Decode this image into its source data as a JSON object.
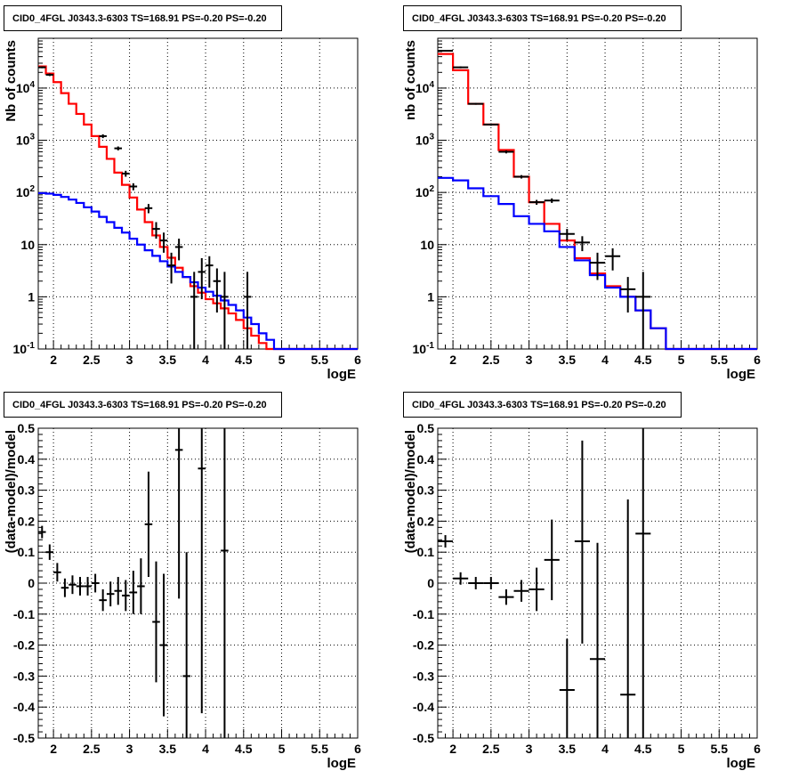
{
  "chart_data": [
    {
      "type": "histogram",
      "title": "CID0_4FGL J0343.3-6303 TS=168.91 PS=-0.20 PS=-0.20",
      "xlabel": "logE",
      "ylabel": "Nb of counts",
      "log_y": true,
      "xlim": [
        1.8,
        6.0
      ],
      "ylim": [
        0.1,
        90000
      ],
      "grid": true,
      "x_ticks": [
        "2",
        "2.5",
        "3",
        "3.5",
        "4",
        "4.5",
        "5",
        "5.5",
        "6"
      ],
      "y_ticks": [
        "10^-1",
        "1",
        "10",
        "10^2",
        "10^3",
        "10^4"
      ],
      "bin_edges": [
        1.8,
        1.9,
        2.0,
        2.1,
        2.2,
        2.3,
        2.4,
        2.5,
        2.6,
        2.7,
        2.8,
        2.9,
        3.0,
        3.1,
        3.2,
        3.3,
        3.4,
        3.5,
        3.6,
        3.7,
        3.8,
        3.9,
        4.0,
        4.1,
        4.2,
        4.3,
        4.4,
        4.5,
        4.6,
        4.7,
        4.8,
        4.9,
        5.0,
        5.1,
        5.2,
        5.3,
        5.4,
        5.5,
        5.6,
        5.7,
        5.8,
        5.9,
        6.0
      ],
      "series": [
        {
          "color": "#ff0000",
          "values": [
            26000,
            19000,
            13000,
            8000,
            5000,
            3200,
            2000,
            1200,
            750,
            440,
            240,
            140,
            80,
            47,
            27,
            15,
            9,
            5.6,
            3.6,
            2.4,
            1.6,
            1.2,
            0.9,
            0.75,
            0.6,
            0.48,
            0.36,
            0.25,
            0.18,
            0.13,
            0.1,
            0.1,
            0.1,
            0.1,
            0.1,
            0.1,
            0.1,
            0.1,
            0.1,
            0.1,
            0.1,
            0.1
          ]
        },
        {
          "color": "#0000ff",
          "values": [
            97,
            95,
            90,
            82,
            73,
            63,
            52,
            43,
            34,
            27,
            21,
            17,
            13,
            10,
            7.8,
            6.1,
            4.8,
            3.8,
            3.0,
            2.4,
            1.9,
            1.5,
            1.25,
            1.05,
            0.85,
            0.7,
            0.55,
            0.4,
            0.3,
            0.2,
            0.15,
            0.1,
            0.1,
            0.1,
            0.1,
            0.1,
            0.1,
            0.1,
            0.1,
            0.1,
            0.1,
            0.1
          ]
        }
      ],
      "points": {
        "x": [
          1.85,
          1.95,
          2.65,
          2.85,
          2.95,
          3.05,
          3.25,
          3.35,
          3.45,
          3.55,
          3.65,
          3.85,
          3.95,
          4.05,
          4.15,
          4.25,
          4.55
        ],
        "y": [
          25000,
          18000,
          1200,
          700,
          230,
          130,
          50,
          20,
          12,
          4,
          9,
          1,
          3,
          4,
          2,
          1,
          1
        ],
        "ylo": [
          24000,
          17000,
          1100,
          640,
          200,
          110,
          40,
          13,
          7,
          1.8,
          5,
          0.1,
          0.9,
          1.5,
          0.5,
          0.1,
          0.1
        ],
        "yhi": [
          26000,
          19000,
          1300,
          760,
          260,
          150,
          60,
          27,
          17,
          7,
          13,
          3,
          5.5,
          6,
          3.5,
          3,
          3
        ]
      }
    },
    {
      "type": "histogram",
      "title": "CID0_4FGL J0343.3-6303 TS=168.91 PS=-0.20 PS=-0.20",
      "xlabel": "logE",
      "ylabel": "nb of counts",
      "log_y": true,
      "xlim": [
        1.8,
        6.0
      ],
      "ylim": [
        0.1,
        90000
      ],
      "grid": true,
      "x_ticks": [
        "2",
        "2.5",
        "3",
        "3.5",
        "4",
        "4.5",
        "5",
        "5.5",
        "6"
      ],
      "y_ticks": [
        "10^-1",
        "1",
        "10",
        "10^2",
        "10^3",
        "10^4"
      ],
      "bin_edges": [
        1.8,
        2.0,
        2.2,
        2.4,
        2.6,
        2.8,
        3.0,
        3.2,
        3.4,
        3.6,
        3.8,
        4.0,
        4.2,
        4.4,
        4.6,
        4.8,
        5.0,
        5.2,
        5.4,
        5.6,
        5.8,
        6.0
      ],
      "series": [
        {
          "color": "#ff0000",
          "values": [
            45000,
            22000,
            5000,
            2000,
            650,
            200,
            65,
            25,
            12,
            5.5,
            2.8,
            1.6,
            1.0,
            0.55,
            0.25,
            0.1,
            0.1,
            0.1,
            0.1,
            0.1,
            0.1
          ]
        },
        {
          "color": "#0000ff",
          "values": [
            190,
            170,
            120,
            85,
            60,
            35,
            25,
            18,
            9,
            5,
            2.6,
            1.5,
            1.0,
            0.55,
            0.25,
            0.1,
            0.1,
            0.1,
            0.1,
            0.1,
            0.1
          ]
        }
      ],
      "points": {
        "x": [
          1.9,
          2.1,
          2.3,
          2.5,
          2.7,
          2.9,
          3.1,
          3.3,
          3.5,
          3.7,
          3.9,
          4.1,
          4.3,
          4.5
        ],
        "y": [
          52000,
          25000,
          5000,
          2000,
          600,
          200,
          65,
          70,
          16,
          11,
          4.5,
          6,
          1.4,
          1
        ],
        "ylo": [
          50000,
          24000,
          4800,
          1900,
          560,
          185,
          58,
          63,
          12,
          7.5,
          2.1,
          3.2,
          0.5,
          0.1
        ],
        "yhi": [
          54000,
          26000,
          5200,
          2100,
          640,
          215,
          72,
          77,
          20,
          14.5,
          7,
          8.5,
          2.4,
          3
        ]
      }
    },
    {
      "type": "scatter",
      "title": "CID0_4FGL J0343.3-6303 TS=168.91 PS=-0.20 PS=-0.20",
      "xlabel": "logE",
      "ylabel": "(data-model)/model",
      "xlim": [
        1.8,
        6.0
      ],
      "ylim": [
        -0.5,
        0.5
      ],
      "grid": true,
      "x_ticks": [
        "2",
        "2.5",
        "3",
        "3.5",
        "4",
        "4.5",
        "5",
        "5.5",
        "6"
      ],
      "y_ticks": [
        "-0.5",
        "-0.4",
        "-0.3",
        "-0.2",
        "-0.1",
        "0",
        "0.1",
        "0.2",
        "0.3",
        "0.4",
        "0.5"
      ],
      "xerr": 0.05,
      "points": {
        "x": [
          1.85,
          1.95,
          2.05,
          2.15,
          2.25,
          2.35,
          2.45,
          2.55,
          2.65,
          2.75,
          2.85,
          2.95,
          3.05,
          3.15,
          3.25,
          3.35,
          3.45,
          3.65,
          3.75,
          3.95,
          4.25
        ],
        "y": [
          0.165,
          0.1,
          0.035,
          -0.015,
          -0.005,
          -0.01,
          -0.01,
          0.0,
          -0.055,
          -0.035,
          -0.025,
          -0.04,
          -0.03,
          -0.01,
          0.19,
          -0.125,
          -0.2,
          0.43,
          -0.3,
          0.37,
          0.105
        ],
        "ylo": [
          0.145,
          0.075,
          0.005,
          -0.045,
          -0.035,
          -0.04,
          -0.04,
          -0.03,
          -0.09,
          -0.075,
          -0.07,
          -0.09,
          -0.1,
          -0.1,
          0.02,
          -0.32,
          -0.43,
          -0.05,
          -0.5,
          -0.42,
          -0.5
        ],
        "yhi": [
          0.185,
          0.125,
          0.065,
          0.015,
          0.025,
          0.02,
          0.02,
          0.03,
          -0.02,
          0.005,
          0.02,
          0.01,
          0.04,
          0.08,
          0.36,
          0.07,
          0.03,
          0.5,
          0.1,
          0.5,
          0.5
        ]
      }
    },
    {
      "type": "scatter",
      "title": "CID0_4FGL J0343.3-6303 TS=168.91 PS=-0.20 PS=-0.20",
      "xlabel": "logE",
      "ylabel": "(data-model)/model",
      "xlim": [
        1.8,
        6.0
      ],
      "ylim": [
        -0.5,
        0.5
      ],
      "grid": true,
      "x_ticks": [
        "2",
        "2.5",
        "3",
        "3.5",
        "4",
        "4.5",
        "5",
        "5.5",
        "6"
      ],
      "y_ticks": [
        "-0.5",
        "-0.4",
        "-0.3",
        "-0.2",
        "-0.1",
        "0",
        "0.1",
        "0.2",
        "0.3",
        "0.4",
        "0.5"
      ],
      "xerr": 0.1,
      "points": {
        "x": [
          1.9,
          2.1,
          2.3,
          2.5,
          2.7,
          2.9,
          3.1,
          3.3,
          3.5,
          3.7,
          3.9,
          4.3,
          4.5
        ],
        "y": [
          0.135,
          0.015,
          0.0,
          0.0,
          -0.045,
          -0.025,
          -0.02,
          0.075,
          -0.345,
          0.135,
          -0.245,
          -0.36,
          0.16
        ],
        "ylo": [
          0.115,
          -0.005,
          -0.02,
          -0.02,
          -0.07,
          -0.06,
          -0.09,
          -0.055,
          -0.5,
          -0.195,
          -0.5,
          -0.5,
          -0.5
        ],
        "yhi": [
          0.155,
          0.035,
          0.02,
          0.02,
          -0.02,
          0.01,
          0.05,
          0.205,
          -0.18,
          0.46,
          0.13,
          0.27,
          0.5
        ]
      }
    }
  ]
}
